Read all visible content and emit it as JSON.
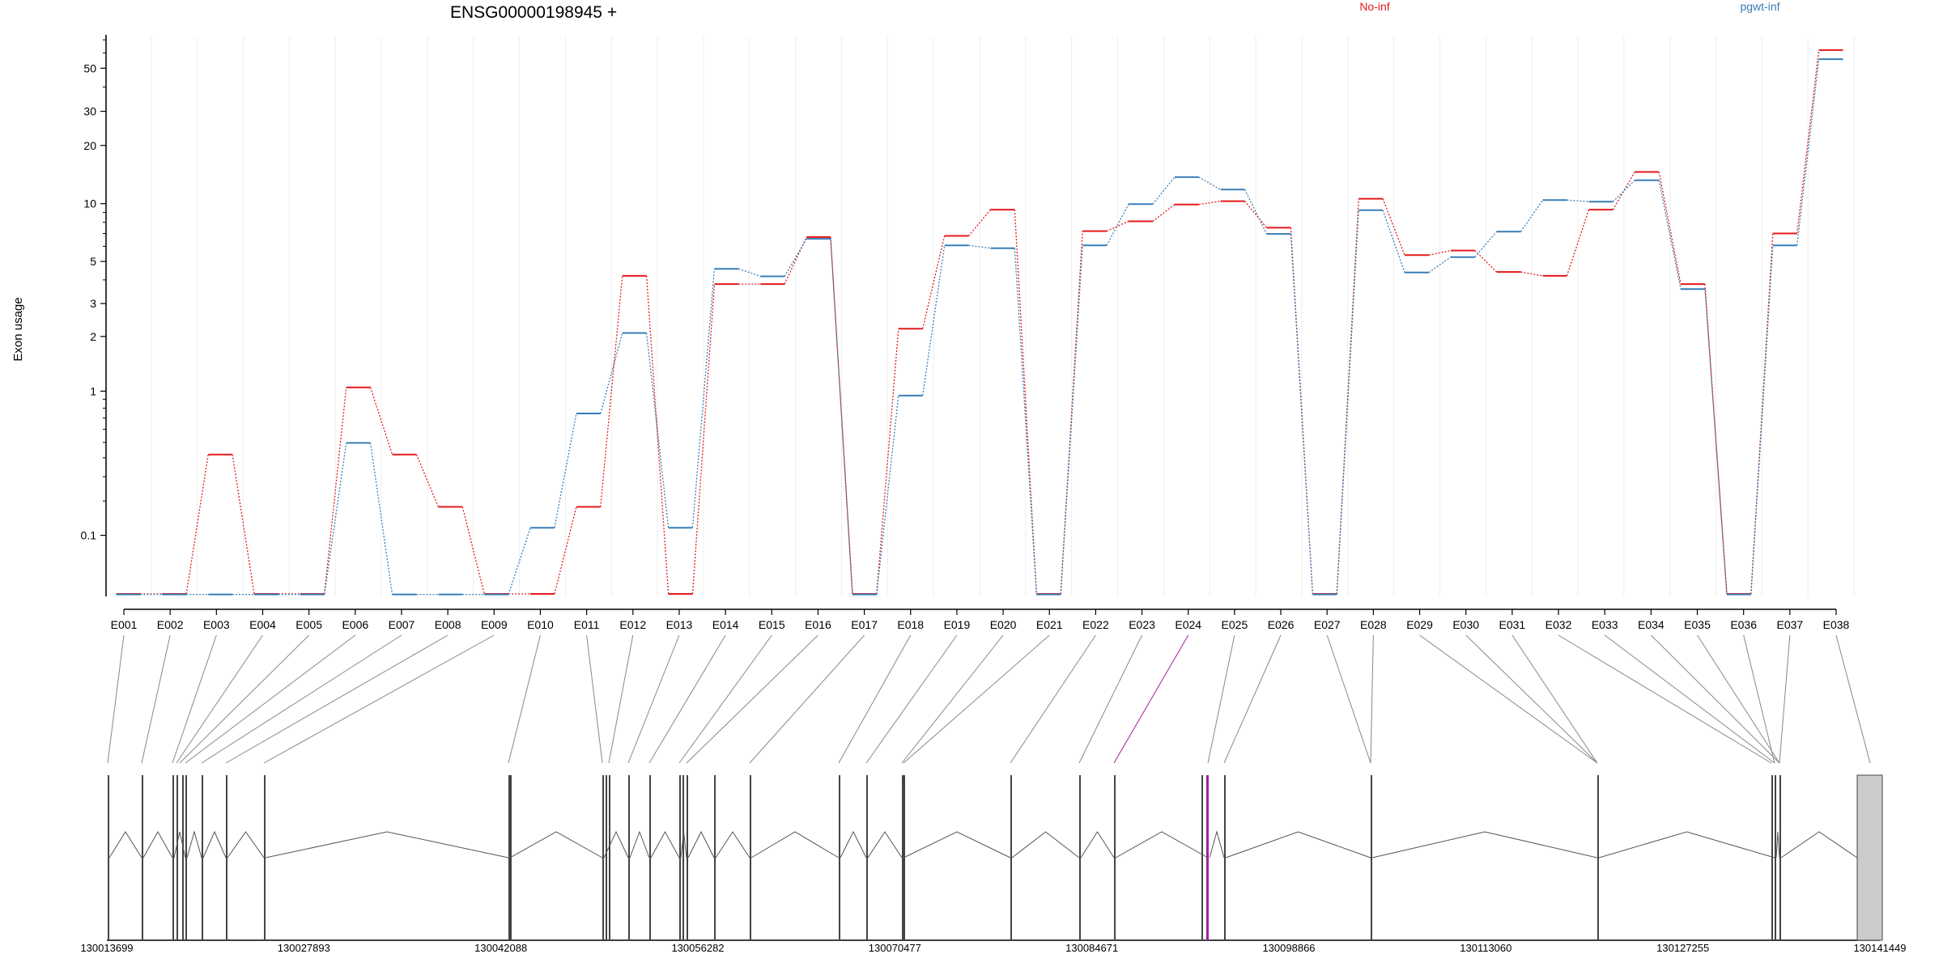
{
  "chart_data": {
    "type": "line",
    "title": "ENSG00000198945 +",
    "ylabel": "Exon usage",
    "xlabel": "",
    "yscale": "log (offset +0.1)",
    "ylim": [
      0,
      70
    ],
    "grid": "vertical lines at exon boundaries",
    "legend_placement": "top",
    "yticks": [
      0.1,
      1,
      2,
      3,
      5,
      10,
      20,
      30,
      50
    ],
    "categories": [
      "E001",
      "E002",
      "E003",
      "E004",
      "E005",
      "E006",
      "E007",
      "E008",
      "E009",
      "E010",
      "E011",
      "E012",
      "E013",
      "E014",
      "E015",
      "E016",
      "E017",
      "E018",
      "E019",
      "E020",
      "E021",
      "E022",
      "E023",
      "E024",
      "E025",
      "E026",
      "E027",
      "E028",
      "E029",
      "E030",
      "E031",
      "E032",
      "E033",
      "E034",
      "E035",
      "E036",
      "E037",
      "E038"
    ],
    "series": [
      {
        "name": "No-inf",
        "color": "#e41a1c",
        "values": [
          0,
          0,
          0.42,
          0,
          0,
          1.05,
          0.42,
          0.18,
          0,
          0,
          0.18,
          4.2,
          0,
          3.8,
          3.8,
          6.7,
          0,
          2.2,
          6.8,
          9.3,
          0,
          7.2,
          8.1,
          9.9,
          10.3,
          7.5,
          0,
          10.6,
          5.4,
          5.7,
          4.4,
          4.2,
          9.3,
          14.6,
          3.8,
          0,
          7.0,
          62
        ]
      },
      {
        "name": "pgwt-inf",
        "color": "#377eb8",
        "values": [
          0,
          0,
          0,
          0,
          0,
          0.5,
          0,
          0,
          0,
          0.12,
          0.75,
          2.1,
          0.12,
          4.6,
          4.2,
          6.6,
          0,
          0.95,
          6.1,
          5.9,
          0,
          6.1,
          10.0,
          13.8,
          11.9,
          7.0,
          0,
          9.3,
          4.4,
          5.3,
          7.2,
          10.5,
          10.3,
          13.3,
          3.6,
          0,
          6.1,
          56
        ]
      }
    ],
    "gene_model": {
      "coordinate_ticks": [
        "130013699",
        "130027893",
        "130042088",
        "130056282",
        "130070477",
        "130084671",
        "130098866",
        "130113060",
        "130127255",
        "130141449"
      ],
      "highlighted_exon": "E024",
      "highlight_color": "#a020a0"
    }
  }
}
